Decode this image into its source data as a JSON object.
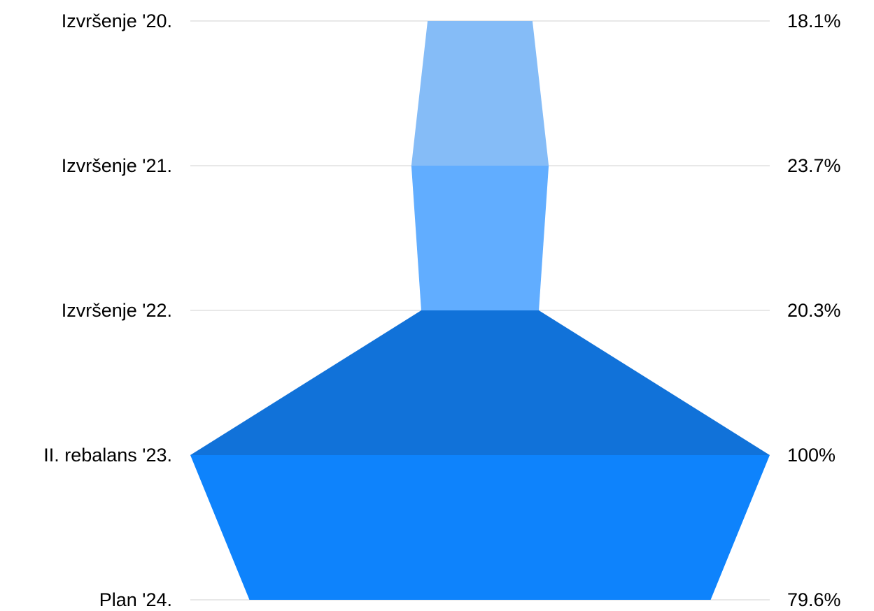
{
  "chart_data": {
    "type": "area",
    "subtype": "funnel",
    "categories": [
      "Izvršenje '20.",
      "Izvršenje '21.",
      "Izvršenje '22.",
      "II. rebalans '23.",
      "Plan '24."
    ],
    "values": [
      18.1,
      23.7,
      20.3,
      100,
      79.6
    ],
    "value_labels": [
      "18.1%",
      "23.7%",
      "20.3%",
      "100%",
      "79.6%"
    ],
    "value_unit": "%",
    "segment_colors": [
      "#85bcf7",
      "#61adff",
      "#1172d9",
      "#0e83fc"
    ],
    "gridline_color": "#d0d0d0",
    "grid": true,
    "legend": "none"
  }
}
